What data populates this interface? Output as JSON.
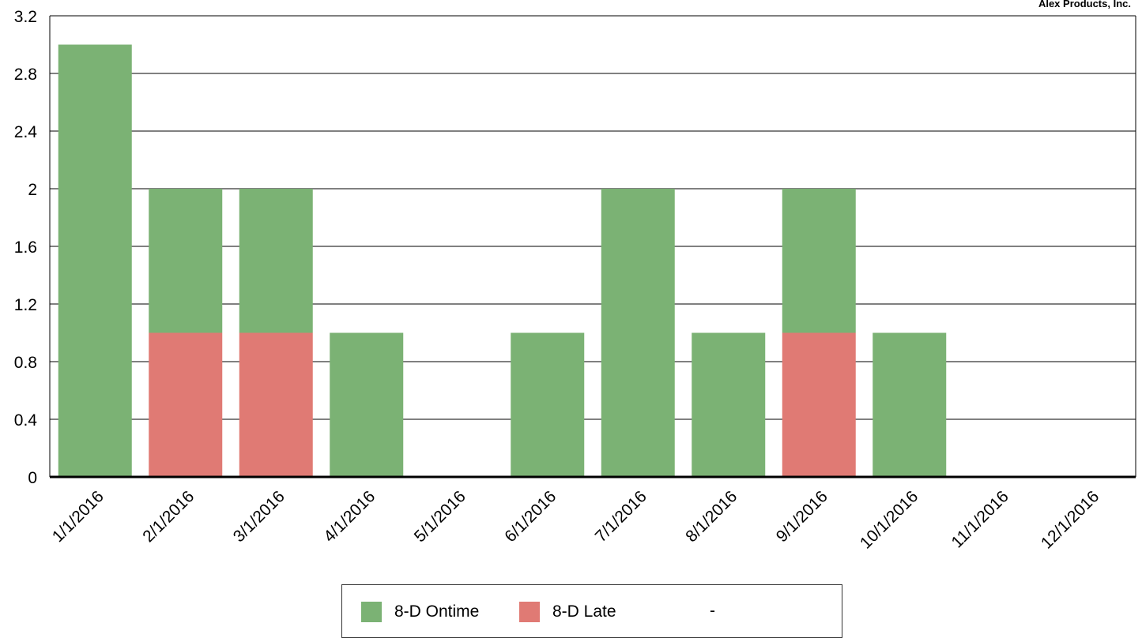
{
  "company": "Alex Products, Inc.",
  "colors": {
    "ontime": "#7bb274",
    "late": "#e07a74",
    "grid": "#000000"
  },
  "chart_data": {
    "type": "bar",
    "stacked": true,
    "categories": [
      "1/1/2016",
      "2/1/2016",
      "3/1/2016",
      "4/1/2016",
      "5/1/2016",
      "6/1/2016",
      "7/1/2016",
      "8/1/2016",
      "9/1/2016",
      "10/1/2016",
      "11/1/2016",
      "12/1/2016"
    ],
    "series": [
      {
        "name": "8-D Late",
        "color": "#e07a74",
        "values": [
          0,
          1,
          1,
          0,
          0,
          0,
          0,
          0,
          1,
          0,
          0,
          0
        ]
      },
      {
        "name": "8-D Ontime",
        "color": "#7bb274",
        "values": [
          3,
          1,
          1,
          1,
          0,
          1,
          2,
          1,
          1,
          1,
          0,
          0
        ]
      }
    ],
    "ylim": [
      0,
      3.2
    ],
    "yticks": [
      "0",
      "0.4",
      "0.8",
      "1.2",
      "1.6",
      "2",
      "2.4",
      "2.8",
      "3.2"
    ],
    "grid": true,
    "legend_position": "bottom",
    "title": "",
    "xlabel": "",
    "ylabel": ""
  },
  "legend": [
    {
      "label": "8-D Ontime",
      "color": "#7bb274"
    },
    {
      "label": "8-D Late",
      "color": "#e07a74"
    },
    {
      "label": "-"
    }
  ]
}
